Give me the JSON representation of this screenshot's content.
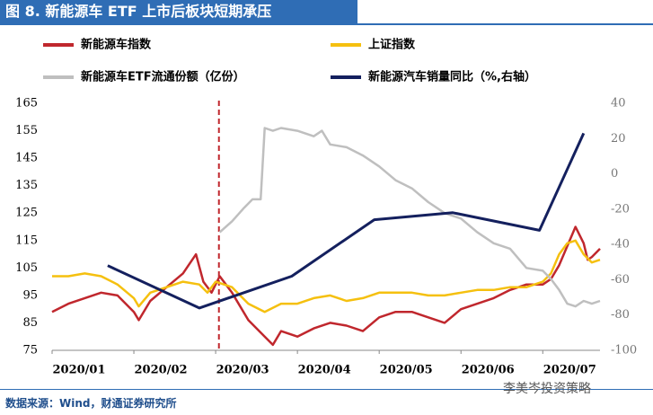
{
  "header": "图 8. 新能源车 ETF 上市后板块短期承压",
  "source": "数据来源：Wind，财通证券研究所",
  "watermark": "李美岑投资策略",
  "chart_data": {
    "type": "line",
    "xlim": [
      0,
      6.7
    ],
    "xticks": [
      {
        "value": 0,
        "label": "2020/01"
      },
      {
        "value": 1,
        "label": "2020/02"
      },
      {
        "value": 2,
        "label": "2020/03"
      },
      {
        "value": 3,
        "label": "2020/04"
      },
      {
        "value": 4,
        "label": "2020/05"
      },
      {
        "value": 5,
        "label": "2020/06"
      },
      {
        "value": 6,
        "label": "2020/07"
      }
    ],
    "ylim": [
      75,
      165
    ],
    "yticks": [
      75,
      85,
      95,
      105,
      115,
      125,
      135,
      145,
      155,
      165
    ],
    "y2lim": [
      -100,
      40
    ],
    "y2ticks": [
      -100,
      -80,
      -60,
      -40,
      -20,
      0,
      20,
      40
    ],
    "vline": 2.04,
    "series": [
      {
        "name": "新能源车指数",
        "color": "#c0272d",
        "x": [
          0,
          0.2,
          0.4,
          0.6,
          0.8,
          1.0,
          1.06,
          1.2,
          1.4,
          1.6,
          1.76,
          1.85,
          1.95,
          2.05,
          2.2,
          2.4,
          2.6,
          2.7,
          2.8,
          3.0,
          3.2,
          3.4,
          3.6,
          3.8,
          4.0,
          4.2,
          4.4,
          4.6,
          4.8,
          5.0,
          5.2,
          5.4,
          5.6,
          5.8,
          6.0,
          6.1,
          6.2,
          6.3,
          6.4,
          6.5,
          6.55,
          6.6,
          6.7
        ],
        "values": [
          89,
          92,
          94,
          96,
          95,
          89,
          86,
          93,
          98,
          103,
          110,
          100,
          96,
          102,
          96,
          86,
          80,
          77,
          82,
          80,
          83,
          85,
          84,
          82,
          87,
          89,
          89,
          87,
          85,
          90,
          92,
          94,
          97,
          99,
          99,
          101,
          106,
          113,
          120,
          114,
          108,
          109,
          112
        ]
      },
      {
        "name": "上证指数",
        "color": "#f5c00f",
        "x": [
          0,
          0.2,
          0.4,
          0.6,
          0.8,
          1.0,
          1.06,
          1.2,
          1.4,
          1.6,
          1.8,
          1.9,
          2.0,
          2.2,
          2.4,
          2.6,
          2.8,
          3.0,
          3.2,
          3.4,
          3.6,
          3.8,
          4.0,
          4.2,
          4.4,
          4.6,
          4.8,
          5.0,
          5.2,
          5.4,
          5.6,
          5.8,
          6.0,
          6.1,
          6.2,
          6.3,
          6.4,
          6.5,
          6.6,
          6.7
        ],
        "values": [
          102,
          102,
          103,
          102,
          99,
          94,
          91,
          96,
          98,
          100,
          99,
          96,
          100,
          98,
          92,
          89,
          92,
          92,
          94,
          95,
          93,
          94,
          96,
          96,
          96,
          95,
          95,
          96,
          97,
          97,
          98,
          98,
          100,
          103,
          110,
          114,
          115,
          110,
          107,
          108
        ]
      },
      {
        "name": "新能源车ETF流通份额（亿份）",
        "color": "#bfbfbf",
        "x": [
          2.05,
          2.2,
          2.35,
          2.45,
          2.55,
          2.6,
          2.7,
          2.8,
          3.0,
          3.2,
          3.3,
          3.4,
          3.6,
          3.8,
          4.0,
          4.2,
          4.4,
          4.6,
          4.8,
          5.0,
          5.2,
          5.4,
          5.6,
          5.8,
          6.0,
          6.1,
          6.2,
          6.3,
          6.4,
          6.5,
          6.6,
          6.7
        ],
        "values": [
          118,
          122,
          127,
          130,
          130,
          156,
          155,
          156,
          155,
          153,
          155,
          150,
          149,
          146,
          142,
          137,
          134,
          129,
          125,
          123,
          118,
          114,
          112,
          105,
          104,
          101,
          97,
          92,
          91,
          93,
          92,
          93
        ]
      },
      {
        "name": "新能源汽车销量同比（%,右轴）",
        "color": "#14205e",
        "axis": "y2",
        "x": [
          0.68,
          1.8,
          2.93,
          3.94,
          4.9,
          5.96,
          6.5
        ],
        "values": [
          -52,
          -76,
          -58,
          -26,
          -22,
          -32,
          23
        ]
      }
    ]
  }
}
